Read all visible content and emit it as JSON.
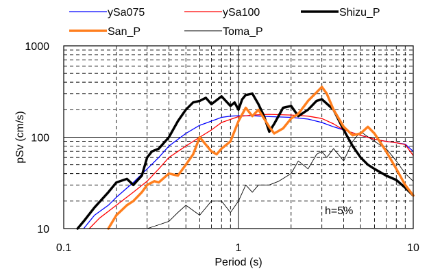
{
  "chart_data": {
    "type": "line",
    "title": "",
    "xlabel": "Period (s)",
    "ylabel": "pSv (cm/s)",
    "xscale": "log",
    "yscale": "log",
    "xlim": [
      0.1,
      10
    ],
    "ylim": [
      10,
      1000
    ],
    "xticks": [
      "0.1",
      "1",
      "10"
    ],
    "yticks": [
      "10",
      "100",
      "1000"
    ],
    "grid": true,
    "legend_position": "top",
    "annotation": "h=5%",
    "series": [
      {
        "name": "ySa075",
        "color": "#0000ff",
        "width": 1.3,
        "x": [
          0.13,
          0.15,
          0.18,
          0.2,
          0.25,
          0.3,
          0.35,
          0.4,
          0.5,
          0.6,
          0.7,
          0.8,
          0.9,
          1.0,
          1.2,
          1.5,
          2.0,
          2.5,
          3.0,
          3.5,
          4.0,
          5.0,
          6.0,
          7.0,
          8.0,
          9.0,
          10.0
        ],
        "y": [
          10,
          14,
          18,
          22,
          32,
          45,
          60,
          80,
          110,
          135,
          150,
          165,
          170,
          172,
          172,
          168,
          165,
          158,
          145,
          130,
          120,
          105,
          95,
          90,
          87,
          84,
          70
        ]
      },
      {
        "name": "ySa100",
        "color": "#ff0000",
        "width": 1.3,
        "x": [
          0.14,
          0.16,
          0.2,
          0.25,
          0.3,
          0.35,
          0.4,
          0.5,
          0.6,
          0.7,
          0.8,
          1.0,
          1.2,
          1.5,
          2.0,
          2.5,
          3.0,
          3.5,
          4.0,
          5.0,
          6.0,
          7.0,
          8.0,
          9.0,
          10.0
        ],
        "y": [
          10,
          13,
          18,
          25,
          33,
          45,
          60,
          80,
          100,
          120,
          145,
          168,
          175,
          178,
          175,
          170,
          160,
          140,
          120,
          105,
          95,
          90,
          87,
          83,
          63
        ]
      },
      {
        "name": "Shizu_P",
        "color": "#000000",
        "width": 3.5,
        "x": [
          0.12,
          0.13,
          0.15,
          0.18,
          0.2,
          0.23,
          0.25,
          0.28,
          0.3,
          0.32,
          0.35,
          0.4,
          0.45,
          0.5,
          0.55,
          0.6,
          0.65,
          0.7,
          0.8,
          0.9,
          0.95,
          1.0,
          1.05,
          1.1,
          1.2,
          1.3,
          1.4,
          1.5,
          1.6,
          1.8,
          2.0,
          2.2,
          2.5,
          2.8,
          3.0,
          3.5,
          4.0,
          4.5,
          5.0,
          5.5,
          6.0,
          7.0,
          8.0,
          9.0,
          10.0
        ],
        "y": [
          10,
          12,
          17,
          25,
          32,
          35,
          30,
          38,
          60,
          70,
          75,
          100,
          150,
          200,
          240,
          250,
          270,
          230,
          280,
          220,
          240,
          200,
          260,
          290,
          300,
          230,
          170,
          115,
          140,
          210,
          220,
          170,
          200,
          250,
          260,
          200,
          120,
          80,
          60,
          50,
          45,
          38,
          34,
          28,
          23
        ]
      },
      {
        "name": "San_P",
        "color": "#ff7f1e",
        "width": 3.5,
        "x": [
          0.18,
          0.2,
          0.23,
          0.25,
          0.28,
          0.3,
          0.33,
          0.35,
          0.4,
          0.45,
          0.5,
          0.55,
          0.6,
          0.7,
          0.75,
          0.8,
          0.9,
          1.0,
          1.1,
          1.2,
          1.3,
          1.5,
          1.6,
          1.8,
          2.0,
          2.2,
          2.5,
          2.8,
          3.0,
          3.2,
          3.5,
          4.0,
          4.5,
          5.0,
          5.5,
          6.0,
          7.0,
          8.0,
          9.0,
          10.0
        ],
        "y": [
          10,
          14,
          18,
          20,
          25,
          30,
          33,
          32,
          40,
          38,
          50,
          65,
          100,
          70,
          65,
          75,
          90,
          150,
          210,
          170,
          200,
          130,
          110,
          125,
          160,
          180,
          250,
          310,
          355,
          300,
          200,
          130,
          105,
          110,
          130,
          110,
          70,
          45,
          30,
          23
        ]
      },
      {
        "name": "Toma_P",
        "color": "#000000",
        "width": 0.9,
        "x": [
          0.2,
          0.25,
          0.3,
          0.35,
          0.4,
          0.45,
          0.5,
          0.6,
          0.7,
          0.8,
          0.9,
          1.0,
          1.1,
          1.2,
          1.3,
          1.5,
          1.7,
          2.0,
          2.2,
          2.5,
          2.8,
          3.0,
          3.2,
          3.5,
          4.0,
          4.5,
          5.0,
          6.0,
          7.0,
          8.0,
          9.0,
          10.0
        ],
        "y": [
          10,
          10,
          10,
          11,
          12,
          15,
          18,
          14,
          20,
          20,
          15,
          20,
          30,
          25,
          30,
          30,
          33,
          40,
          55,
          45,
          65,
          70,
          60,
          75,
          55,
          90,
          115,
          90,
          75,
          55,
          40,
          33
        ]
      }
    ]
  }
}
